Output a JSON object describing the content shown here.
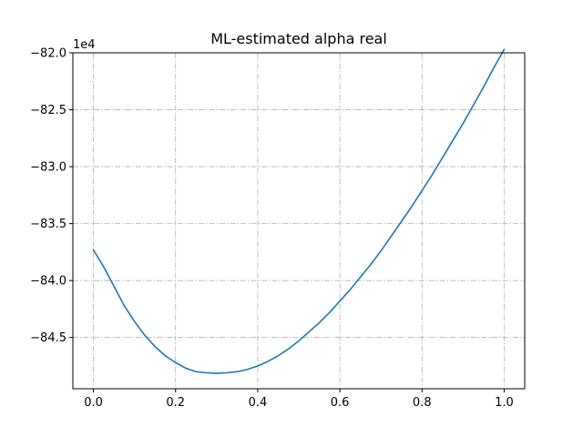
{
  "chart_data": {
    "type": "line",
    "title": "ML-estimated alpha real",
    "xlabel": "",
    "ylabel": "",
    "offset_label": "1e4",
    "xlim": [
      -0.05,
      1.05
    ],
    "ylim": [
      -84.95,
      -82.0
    ],
    "grid": true,
    "x_ticks": [
      0.0,
      0.2,
      0.4,
      0.6,
      0.8,
      1.0
    ],
    "x_tick_labels": [
      "0.0",
      "0.2",
      "0.4",
      "0.6",
      "0.8",
      "1.0"
    ],
    "y_ticks": [
      -82.0,
      -82.5,
      -83.0,
      -83.5,
      -84.0,
      -84.5
    ],
    "y_tick_labels": [
      "−82.0",
      "−82.5",
      "−83.0",
      "−83.5",
      "−84.0",
      "−84.5"
    ],
    "series": [
      {
        "color": "#1f77b4",
        "x": [
          0.0,
          0.025,
          0.05,
          0.075,
          0.1,
          0.125,
          0.15,
          0.175,
          0.2,
          0.225,
          0.25,
          0.275,
          0.3,
          0.325,
          0.35,
          0.375,
          0.4,
          0.425,
          0.45,
          0.475,
          0.5,
          0.525,
          0.55,
          0.575,
          0.6,
          0.625,
          0.65,
          0.675,
          0.7,
          0.725,
          0.75,
          0.775,
          0.8,
          0.825,
          0.85,
          0.875,
          0.9,
          0.925,
          0.95,
          0.975,
          1.0
        ],
        "y": [
          -83.73,
          -83.88,
          -84.05,
          -84.22,
          -84.36,
          -84.48,
          -84.58,
          -84.66,
          -84.72,
          -84.77,
          -84.8,
          -84.81,
          -84.815,
          -84.81,
          -84.8,
          -84.78,
          -84.75,
          -84.71,
          -84.66,
          -84.6,
          -84.53,
          -84.45,
          -84.37,
          -84.28,
          -84.18,
          -84.08,
          -83.97,
          -83.86,
          -83.74,
          -83.61,
          -83.48,
          -83.35,
          -83.21,
          -83.07,
          -82.92,
          -82.77,
          -82.62,
          -82.46,
          -82.3,
          -82.13,
          -81.97
        ]
      }
    ]
  }
}
